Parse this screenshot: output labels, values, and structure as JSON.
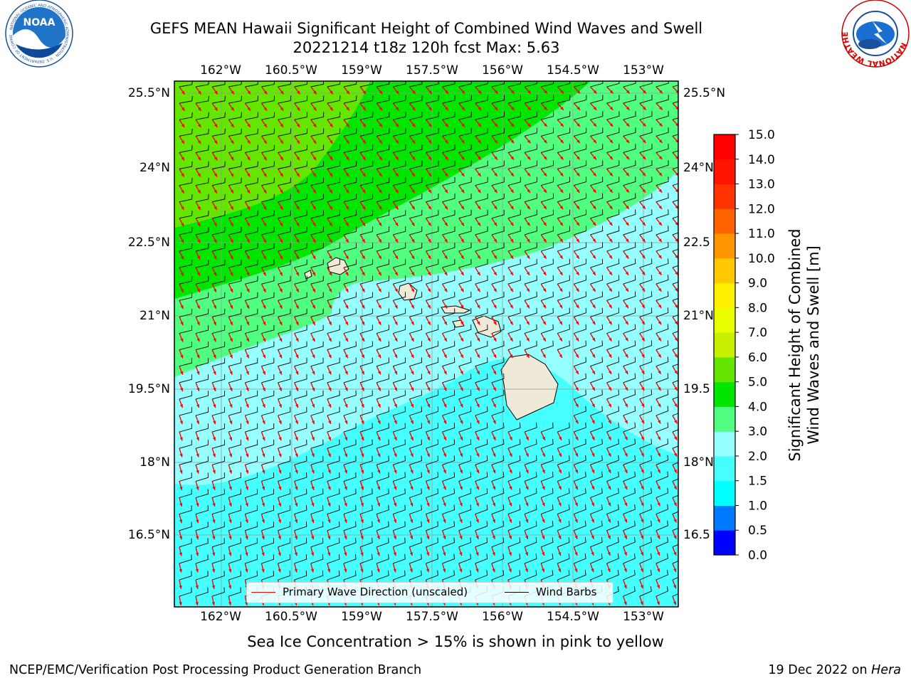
{
  "header": {
    "title_line1": "GEFS MEAN Hawaii Significant Height of Combined Wind Waves and Swell",
    "title_line2": "20221214 t18z 120h fcst   Max: 5.63"
  },
  "logos": {
    "noaa_text": "NOAA",
    "noaa_ring": "NATIONAL OCEANIC AND ATMOSPHERIC ADMINISTRATION · U.S. DEPARTMENT OF COMMERCE",
    "nws_ring": "NATIONAL WEATHER SERVICE"
  },
  "map": {
    "lon_labels": [
      "162°W",
      "160.5°W",
      "159°W",
      "157.5°W",
      "156°W",
      "154.5°W",
      "153°W"
    ],
    "lat_labels": [
      "25.5°N",
      "24°N",
      "22.5°N",
      "21°N",
      "19.5°N",
      "18°N",
      "16.5°N"
    ],
    "lat_labels_right": [
      "25.5°N",
      "24°N",
      "22.5",
      "21°N",
      "19.5",
      "18°N",
      "16.5"
    ],
    "legend": {
      "wave_label": "Primary Wave Direction (unscaled)",
      "barb_label": "Wind Barbs",
      "wave_color": "#ff0000",
      "barb_color": "#000000"
    }
  },
  "colorbar": {
    "label_line1": "Significant Height of Combined",
    "label_line2": "Wind Waves and Swell [m]",
    "ticks": [
      "0.0",
      "0.5",
      "1.0",
      "1.5",
      "2.0",
      "3.0",
      "4.0",
      "5.0",
      "6.0",
      "7.0",
      "8.0",
      "9.0",
      "10.0",
      "11.0",
      "12.0",
      "13.0",
      "14.0",
      "15.0"
    ],
    "colors": [
      "#0000ff",
      "#0078ff",
      "#00ffff",
      "#46ffff",
      "#96ffff",
      "#50ff80",
      "#00e600",
      "#64e600",
      "#c8f000",
      "#eaff00",
      "#fff000",
      "#ffc800",
      "#ff9600",
      "#ff6400",
      "#ff3200",
      "#ff1400",
      "#ff0000"
    ]
  },
  "caption": "Sea Ice Concentration > 15% is shown in pink to yellow",
  "footer": {
    "left": "NCEP/EMC/Verification Post Processing Product Generation Branch",
    "right_prefix": "19 Dec 2022 on ",
    "right_machine": "Hera"
  }
}
